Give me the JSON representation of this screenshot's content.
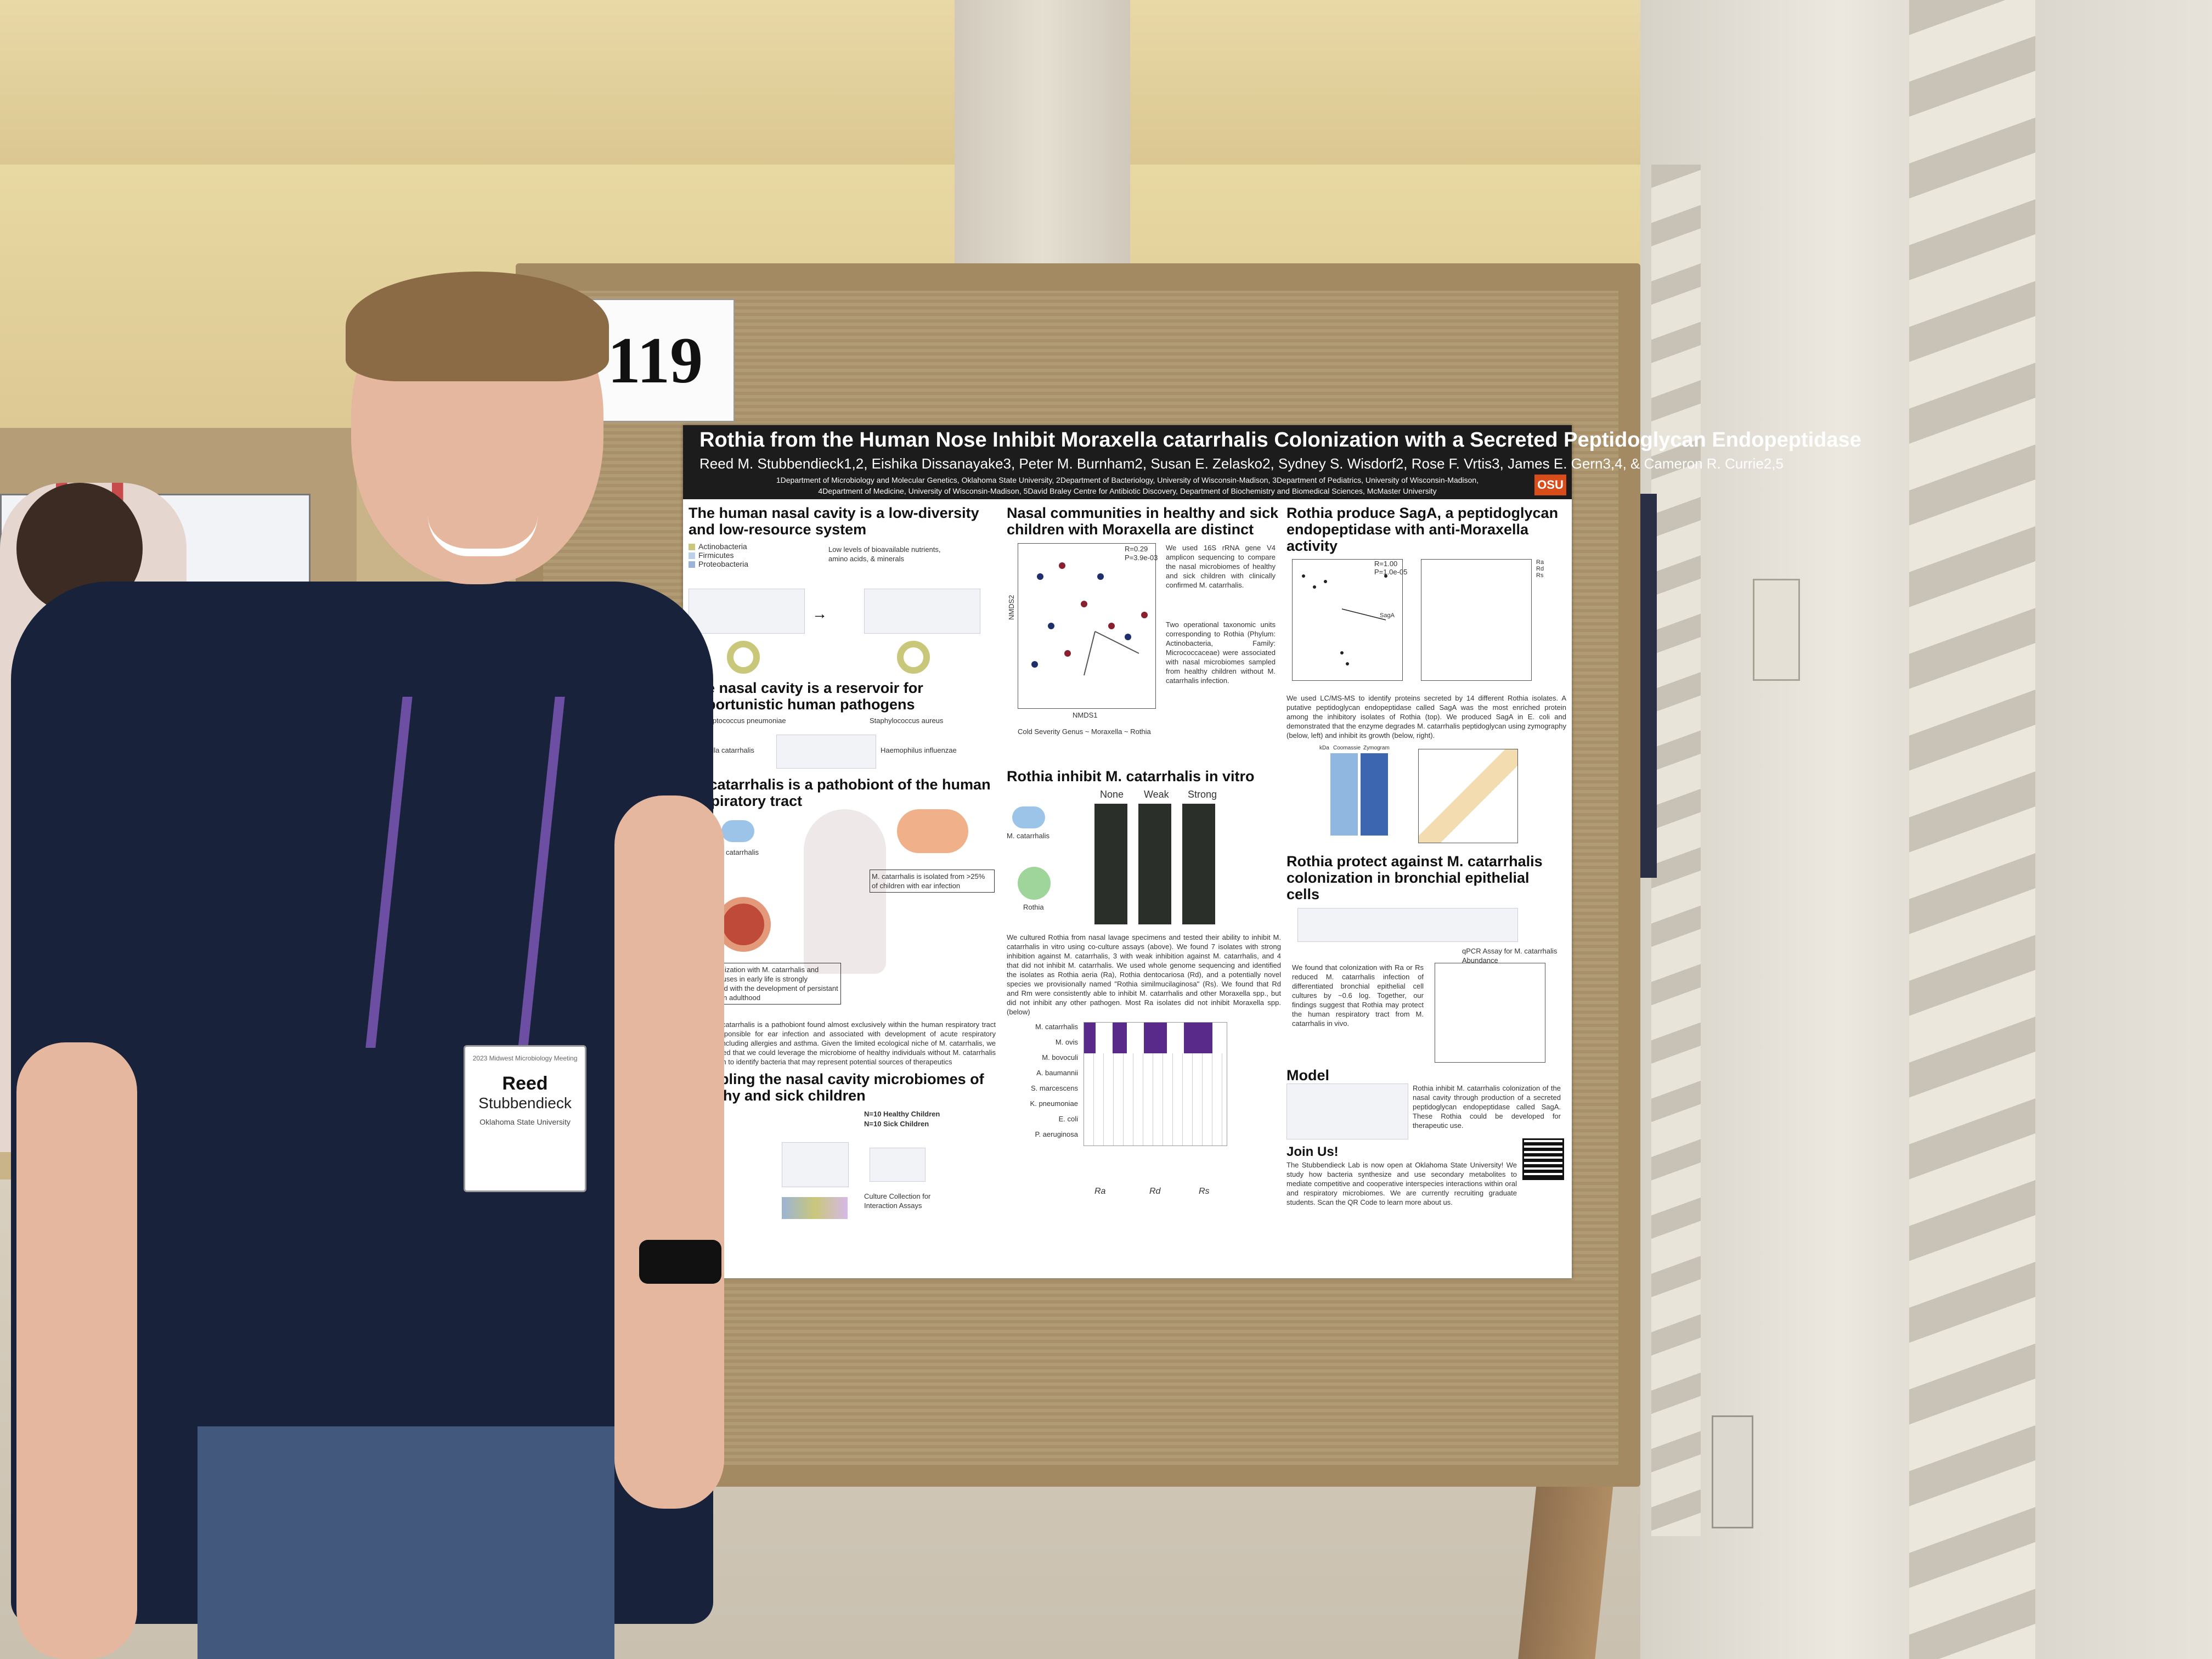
{
  "board_number": "119",
  "poster": {
    "title": "Rothia from the Human Nose Inhibit Moraxella catarrhalis Colonization with a Secreted Peptidoglycan Endopeptidase",
    "authors": "Reed M. Stubbendieck1,2, Eishika Dissanayake3, Peter M. Burnham2, Susan E. Zelasko2, Sydney S. Wisdorf2, Rose F. Vrtis3, James E. Gern3,4, & Cameron R. Currie2,5",
    "affiliation_1": "1Department of Microbiology and Molecular Genetics, Oklahoma State University, 2Department of Bacteriology, University of Wisconsin-Madison, 3Department of Pediatrics, University of Wisconsin-Madison,",
    "affiliation_2": "4Department of Medicine, University of Wisconsin-Madison, 5David Braley Centre for Antibiotic Discovery, Department of Biochemistry and Biomedical Sciences, McMaster University",
    "logo": "OSU",
    "col1": {
      "h1": "The human nasal cavity is a low-diversity and low-resource system",
      "legend": [
        "Actinobacteria",
        "Firmicutes",
        "Proteobacteria"
      ],
      "legend_colors": [
        "#c9c77a",
        "#b9d0e8",
        "#9bb3d6"
      ],
      "resource_note": "Low levels of bioavailable nutrients, amino acids, & minerals",
      "h2": "The nasal cavity is a reservoir for opportunistic human pathogens",
      "pathogens": [
        "Streptococcus pneumoniae",
        "Staphylococcus aureus",
        "Moraxella catarrhalis",
        "Haemophilus influenzae"
      ],
      "h3": "M. catarrhalis is a pathobiont of the human respiratory tract",
      "mc_label": "M. catarrhalis",
      "ear_note": "M. catarrhalis is isolated from >25% of children with ear infection",
      "asthma_note": "Co-colonization with M. catarrhalis and Rhinoviruses in early life is strongly correlated with the development of persistant asthma in adulthood",
      "body": "Moraxella catarrhalis is a pathobiont found almost exclusively within the human respiratory tract that is responsible for ear infection and associated with development of acute respiratory illnesses, including allergies and asthma. Given the limited ecological niche of M. catarrhalis, we hypothesized that we could leverage the microbiome of healthy individuals without M. catarrhalis colonization to identify bacteria that may represent potential sources of therapeutics",
      "h4": "Sampling the nasal cavity microbiomes of healthy and sick children",
      "sampling": [
        "N=10 Healthy Children",
        "N=10 Sick Children"
      ],
      "culture_note": "Culture Collection for Interaction Assays"
    },
    "col2": {
      "h1": "Nasal communities in healthy and sick children with Moraxella are distinct",
      "stats": [
        "R=0.29",
        "P=3.9e-03"
      ],
      "text1": "We used 16S rRNA gene V4 amplicon sequencing to compare the nasal microbiomes of healthy and sick children with clinically confirmed M. catarrhalis.",
      "text2": "Two operational taxonomic units corresponding to Rothia (Phylum: Actinobacteria, Family: Micrococcaceae) were associated with nasal microbiomes sampled from healthy children without M. catarrhalis infection.",
      "axis_x": "NMDS1",
      "axis_y": "NMDS2",
      "legend": "Cold Severity   Genus ~ Moraxella ~ Rothia",
      "h2": "Rothia inhibit M. catarrhalis in vitro",
      "assay_labels": [
        "None",
        "Weak",
        "Strong"
      ],
      "assay_rows": [
        "M. catarrhalis",
        "Rothia"
      ],
      "body": "We cultured Rothia from nasal lavage specimens and tested their ability to inhibit M. catarrhalis in vitro using co-culture assays (above). We found 7 isolates with strong inhibition against M. catarrhalis, 3 with weak inhibition against M. catarrhalis, and 4 that did not inhibit M. catarrhalis. We used whole genome sequencing and identified the isolates as Rothia aeria (Ra), Rothia dentocariosa (Rd), and a potentially novel species we provisionally named \"Rothia similmucilaginosa\" (Rs). We found that Rd and Rm were consistently able to inhibit M. catarrhalis and other Moraxella spp., but did not inhibit any other pathogen. Most Ra isolates did not inhibit Moraxella spp. (below)",
      "heatmap_rows": [
        "M. catarrhalis",
        "M. ovis",
        "M. bovoculi",
        "A. baumannii",
        "S. marcescens",
        "K. pneumoniae",
        "E. coli",
        "P. aeruginosa"
      ],
      "heatmap_groups": [
        "Ra",
        "Rd",
        "Rs"
      ]
    },
    "col3": {
      "h1": "Rothia produce SagA, a peptidoglycan endopeptidase with anti-Moraxella activity",
      "stats": [
        "R=1.00",
        "P=1.0e-05"
      ],
      "sag_label": "SagA",
      "legend": [
        "Ra",
        "Rd",
        "Rs"
      ],
      "text1": "We used LC/MS-MS to identify proteins secreted by 14 different Rothia isolates. A putative peptidoglycan endopeptidase called SagA was the most enriched protein among the inhibitory isolates of Rothia (top). We produced SagA in E. coli and demonstrated that the enzyme degrades M. catarrhalis peptidoglycan using zymography (below, left) and inhibit its growth (below, right).",
      "gel_labels": [
        "kDa",
        "Coomassie",
        "Zymogram"
      ],
      "h2": "Rothia protect against M. catarrhalis colonization in bronchial epithelial cells",
      "qpcr_label": "qPCR Assay for M. catarrhalis Abundance",
      "text2": "We found that colonization with Ra or Rs reduced M. catarrhalis infection of differentiated bronchial epithelial cell cultures by ~0.6 log. Together, our findings suggest that Rothia may protect the human respiratory tract from M. catarrhalis in vivo.",
      "h3": "Model",
      "model_text": "Rothia inhibit M. catarrhalis colonization of the nasal cavity through production of a secreted peptidoglycan endopeptidase called SagA. These Rothia could be developed for therapeutic use.",
      "h4": "Join Us!",
      "join_text": "The Stubbendieck Lab is now open at Oklahoma State University! We study how bacteria synthesize and use secondary metabolites to mediate competitive and cooperative interspecies interactions within oral and respiratory microbiomes. We are currently recruiting graduate students. Scan the QR Code to learn more about us."
    }
  },
  "badge": {
    "event": "2023 Midwest Microbiology Meeting",
    "first_name": "Reed",
    "last_name": "Stubbendieck",
    "institution": "Oklahoma State University"
  }
}
